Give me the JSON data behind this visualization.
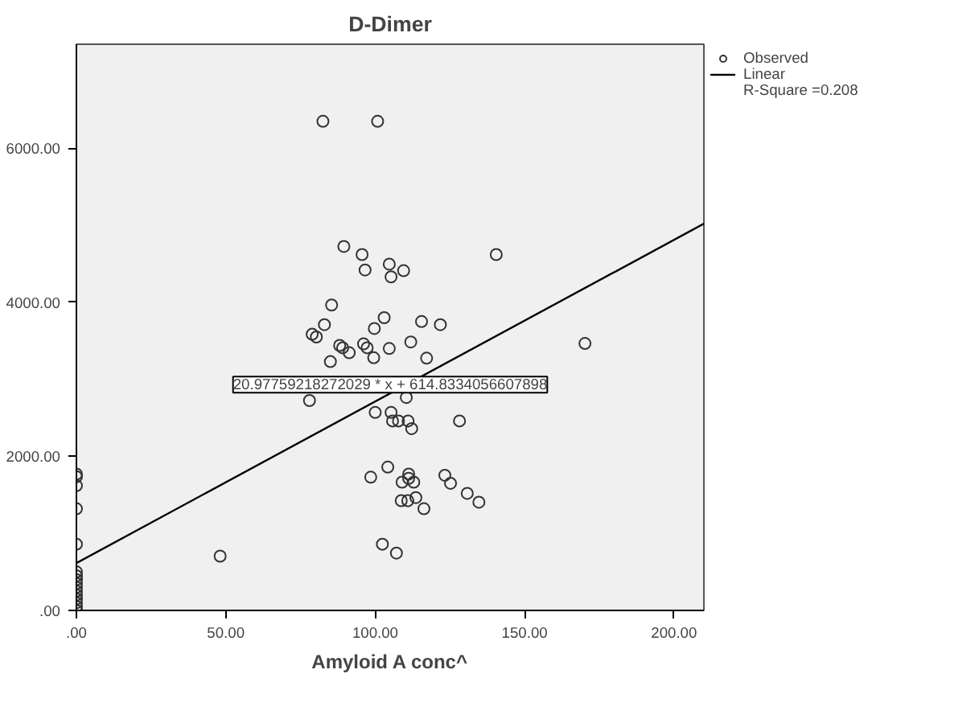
{
  "chart_data": {
    "type": "scatter",
    "title": "D-Dimer",
    "xlabel": "Amyloid A conc^",
    "xlim": [
      0,
      210
    ],
    "ylim": [
      0,
      7350
    ],
    "xticks": [
      {
        "value": 0,
        "label": ".00"
      },
      {
        "value": 50,
        "label": "50.00"
      },
      {
        "value": 100,
        "label": "100.00"
      },
      {
        "value": 150,
        "label": "150.00"
      },
      {
        "value": 200,
        "label": "200.00"
      }
    ],
    "yticks": [
      {
        "value": 0,
        "label": ".00"
      },
      {
        "value": 2000,
        "label": "2000.00"
      },
      {
        "value": 4000,
        "label": "4000.00"
      },
      {
        "value": 6000,
        "label": "6000.00"
      }
    ],
    "grid": false,
    "legend": "top right",
    "marker": "circle",
    "series": [
      {
        "name": "Observed",
        "color": "#333333",
        "x": [
          82.5,
          100.8,
          89.5,
          95.6,
          96.6,
          104.7,
          105.3,
          109.5,
          140.5,
          85.4,
          83,
          78.9,
          80.3,
          103,
          99.7,
          115.5,
          121.8,
          111.9,
          88.1,
          89.1,
          91.3,
          96.1,
          97.3,
          99.5,
          104.7,
          85,
          117.2,
          170.2,
          78,
          110.4,
          100,
          105.3,
          105.8,
          107.8,
          111,
          112.2,
          128.2,
          104.2,
          98.5,
          111.2,
          111.2,
          109,
          112.9,
          123.3,
          125.2,
          130.8,
          134.7,
          108.7,
          110.9,
          113.6,
          116.3,
          102.4,
          107.1,
          48.1,
          0,
          0,
          0,
          0,
          0,
          0,
          0,
          0,
          0,
          0,
          0,
          0,
          0,
          0,
          0,
          0
        ],
        "values": [
          6350,
          6350,
          4725,
          4620,
          4420,
          4495,
          4330,
          4410,
          4620,
          3965,
          3710,
          3585,
          3550,
          3800,
          3660,
          3750,
          3710,
          3485,
          3440,
          3410,
          3345,
          3460,
          3410,
          3280,
          3400,
          3230,
          3275,
          3465,
          2725,
          2765,
          2570,
          2570,
          2460,
          2460,
          2460,
          2360,
          2460,
          1860,
          1730,
          1770,
          1715,
          1665,
          1665,
          1755,
          1650,
          1520,
          1405,
          1425,
          1425,
          1465,
          1320,
          860,
          745,
          705,
          1770,
          1735,
          1620,
          1320,
          860,
          500,
          450,
          400,
          350,
          300,
          250,
          200,
          150,
          100,
          50,
          0
        ]
      },
      {
        "name": "Linear",
        "type": "line",
        "color": "#000000",
        "marker": "none",
        "line_style": "solid",
        "x": [
          0,
          210
        ],
        "values": [
          615,
          5020
        ]
      }
    ],
    "annotations": [
      {
        "text": "20.97759218272029 * x + 614.8334056607898",
        "x": 105,
        "y": 2930
      },
      "R-Square =0.208"
    ]
  }
}
